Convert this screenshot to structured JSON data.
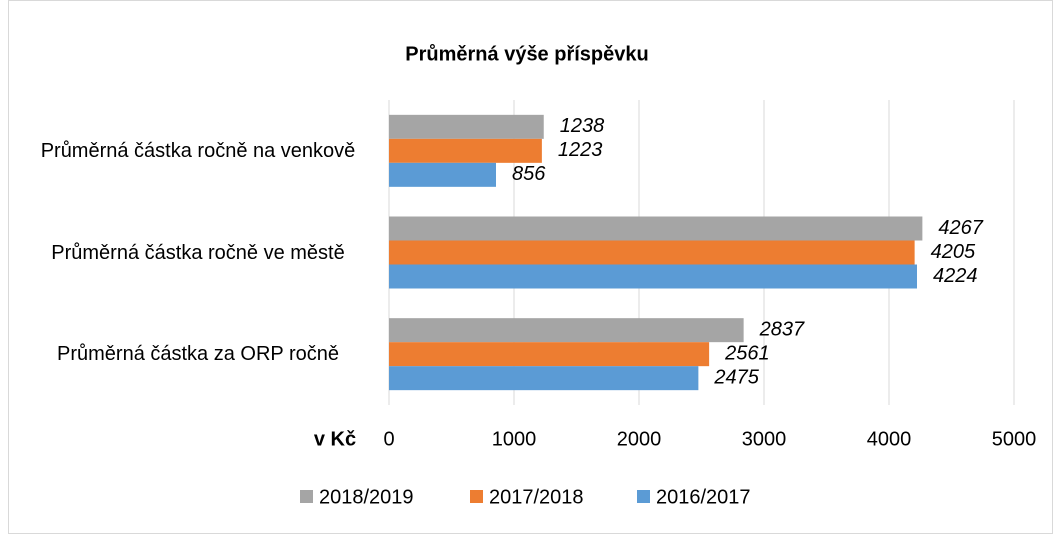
{
  "chart_data": {
    "type": "barh",
    "title": "Průměrná výše příspěvku",
    "categories": [
      "Průměrná částka ročně na venkově",
      "Průměrná částka ročně ve městě",
      "Průměrná částka za ORP ročně"
    ],
    "series": [
      {
        "name": "2018/2019",
        "color": "#a5a5a5",
        "values": [
          1238,
          4267,
          2837
        ]
      },
      {
        "name": "2017/2018",
        "color": "#ed7d31",
        "values": [
          1223,
          4205,
          2561
        ]
      },
      {
        "name": "2016/2017",
        "color": "#5b9bd5",
        "values": [
          856,
          4224,
          2475
        ]
      }
    ],
    "x_label": "v Kč",
    "xlim": [
      0,
      5000
    ],
    "xticks": [
      0,
      1000,
      2000,
      3000,
      4000,
      5000
    ],
    "grid": true,
    "legend": "bottom"
  }
}
